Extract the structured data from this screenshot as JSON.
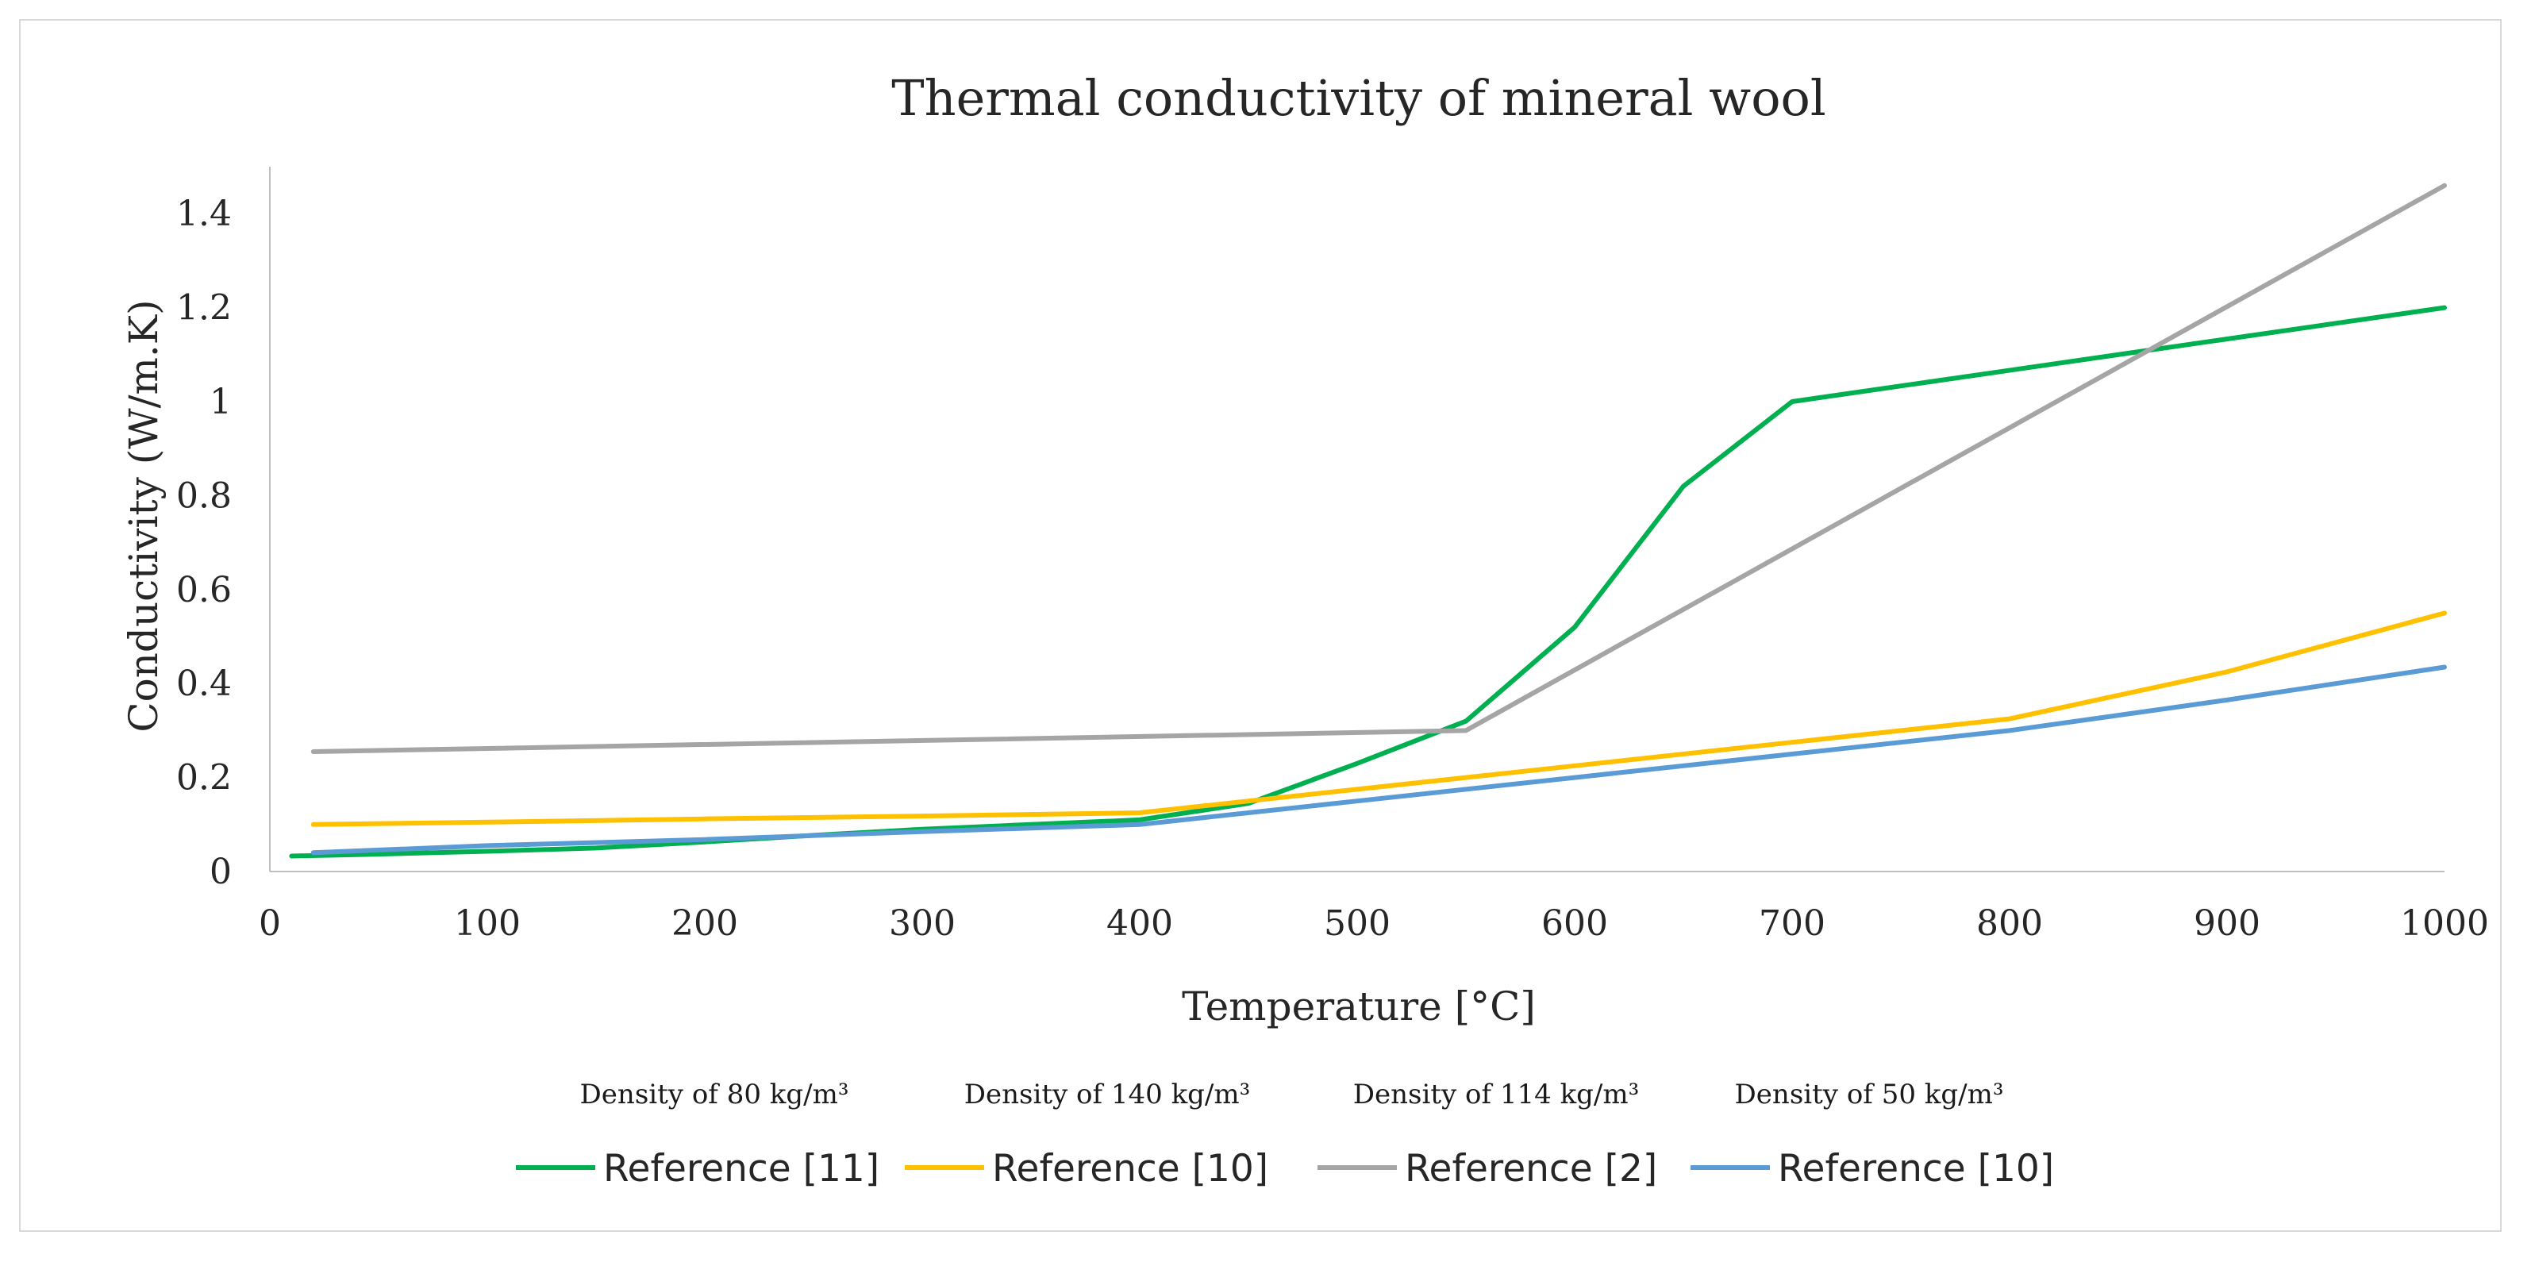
{
  "chart_data": {
    "type": "line",
    "title": "Thermal conductivity of mineral wool",
    "xlabel": "Temperature [°C]",
    "ylabel": "Conductivity (W/m.K)",
    "xlim": [
      0,
      1000
    ],
    "ylim": [
      0,
      1.5
    ],
    "x_ticks": [
      0,
      100,
      200,
      300,
      400,
      500,
      600,
      700,
      800,
      900,
      1000
    ],
    "y_ticks": [
      {
        "value": 0,
        "label": "0"
      },
      {
        "value": 0.2,
        "label": "0.2"
      },
      {
        "value": 0.4,
        "label": "0.4"
      },
      {
        "value": 0.6,
        "label": "0.6"
      },
      {
        "value": 0.8,
        "label": "0.8"
      },
      {
        "value": 1.0,
        "label": "1"
      },
      {
        "value": 1.2,
        "label": "1.2"
      },
      {
        "value": 1.4,
        "label": "1.4"
      }
    ],
    "grid": false,
    "legend_position": "bottom",
    "series": [
      {
        "name": "Reference [11]",
        "note": "Density of 80 kg/m³",
        "color": "#00b050",
        "x": [
          10,
          50,
          100,
          150,
          200,
          250,
          300,
          350,
          400,
          450,
          500,
          550,
          600,
          650,
          700,
          1000
        ],
        "values": [
          0.033,
          0.037,
          0.043,
          0.05,
          0.063,
          0.077,
          0.09,
          0.1,
          0.11,
          0.145,
          0.23,
          0.32,
          0.52,
          0.82,
          1.0,
          1.2
        ]
      },
      {
        "name": "Reference [10]",
        "note": "Density of 140 kg/m³",
        "color": "#ffc000",
        "x": [
          20,
          100,
          200,
          300,
          400,
          500,
          600,
          700,
          800,
          900,
          1000
        ],
        "values": [
          0.1,
          0.105,
          0.112,
          0.118,
          0.125,
          0.175,
          0.225,
          0.275,
          0.325,
          0.425,
          0.55
        ]
      },
      {
        "name": "Reference [2]",
        "note": "Density of 114 kg/m³",
        "color": "#a5a5a5",
        "x": [
          20,
          550,
          1000
        ],
        "values": [
          0.255,
          0.3,
          1.46
        ]
      },
      {
        "name": "Reference [10]",
        "note": "Density of 50 kg/m³",
        "color": "#5b9bd5",
        "x": [
          20,
          100,
          200,
          300,
          400,
          500,
          600,
          700,
          800,
          900,
          1000
        ],
        "values": [
          0.04,
          0.055,
          0.068,
          0.085,
          0.1,
          0.15,
          0.2,
          0.25,
          0.3,
          0.365,
          0.435
        ]
      }
    ]
  }
}
